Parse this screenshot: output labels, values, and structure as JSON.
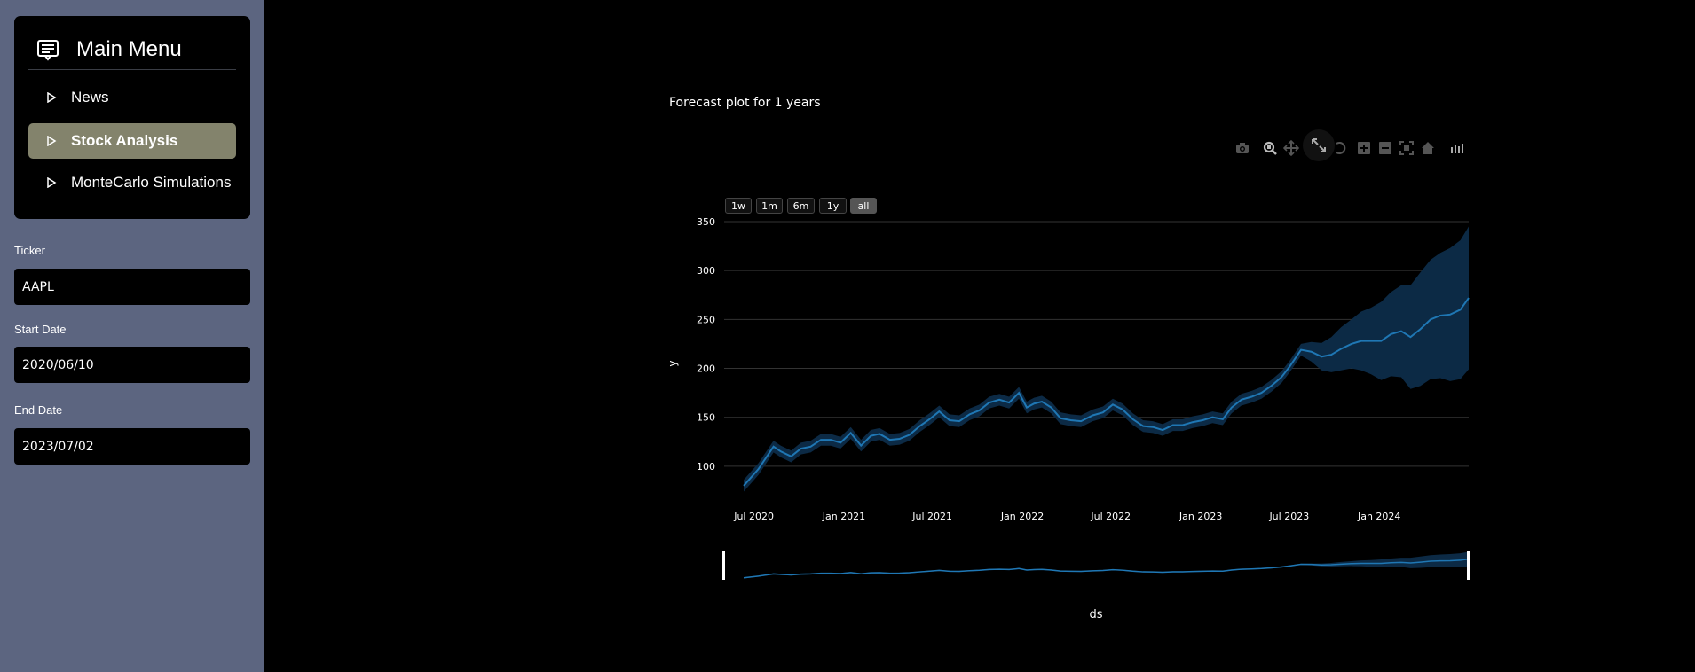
{
  "sidebar": {
    "menu_title": "Main Menu",
    "items": [
      {
        "label": "News",
        "active": false
      },
      {
        "label": "Stock Analysis",
        "active": true
      },
      {
        "label": "MonteCarlo Simulations",
        "active": false
      }
    ],
    "fields": {
      "ticker": {
        "label": "Ticker",
        "value": "AAPL"
      },
      "start_date": {
        "label": "Start Date",
        "value": "2020/06/10"
      },
      "end_date": {
        "label": "End Date",
        "value": "2023/07/02"
      }
    }
  },
  "chart": {
    "heading": "Forecast plot for 1 years",
    "range_buttons": [
      "1w",
      "1m",
      "6m",
      "1y",
      "all"
    ],
    "selected_range": "all",
    "modebar_icons": [
      "camera-icon",
      "zoom-icon",
      "pan-icon",
      "autoscale-icon",
      "lasso-icon",
      "zoom-in-icon",
      "zoom-out-icon",
      "reset-axes-icon",
      "home-icon",
      "plotly-logo-icon"
    ]
  },
  "chart_data": {
    "type": "line",
    "title": "",
    "xlabel": "ds",
    "ylabel": "y",
    "ylim": [
      60,
      350
    ],
    "yticks": [
      100,
      150,
      200,
      250,
      300,
      350
    ],
    "x_tick_labels": [
      "Jul 2020",
      "Jan 2021",
      "Jul 2021",
      "Jan 2022",
      "Jul 2022",
      "Jan 2023",
      "Jul 2023",
      "Jan 2024"
    ],
    "x_tick_dates": [
      "2020-07-01",
      "2021-01-01",
      "2021-07-01",
      "2022-01-01",
      "2022-07-01",
      "2023-01-01",
      "2023-07-01",
      "2024-01-01"
    ],
    "x_range": [
      "2020-05-01",
      "2024-07-02"
    ],
    "grid": true,
    "legend": "none",
    "range_slider": true,
    "line_color": "#1f77b4",
    "band_color": "#0c2a45",
    "series": [
      {
        "x": [
          "2020-06-10",
          "2020-07-10",
          "2020-08-10",
          "2020-08-25",
          "2020-09-15",
          "2020-10-05",
          "2020-10-25",
          "2020-11-15",
          "2020-12-05",
          "2020-12-25",
          "2021-01-15",
          "2021-02-05",
          "2021-02-25",
          "2021-03-15",
          "2021-04-05",
          "2021-04-25",
          "2021-05-15",
          "2021-06-05",
          "2021-06-25",
          "2021-07-15",
          "2021-08-05",
          "2021-08-25",
          "2021-09-15",
          "2021-10-05",
          "2021-10-25",
          "2021-11-15",
          "2021-12-05",
          "2021-12-25",
          "2022-01-10",
          "2022-01-25",
          "2022-02-10",
          "2022-03-01",
          "2022-03-20",
          "2022-04-10",
          "2022-05-01",
          "2022-05-25",
          "2022-06-15",
          "2022-07-05",
          "2022-07-25",
          "2022-08-15",
          "2022-09-05",
          "2022-09-25",
          "2022-10-15",
          "2022-11-05",
          "2022-11-25",
          "2022-12-15",
          "2023-01-05",
          "2023-01-25",
          "2023-02-15",
          "2023-03-05",
          "2023-03-25",
          "2023-04-15",
          "2023-05-05",
          "2023-05-25",
          "2023-06-15",
          "2023-07-02",
          "2023-07-25",
          "2023-08-15",
          "2023-09-05",
          "2023-09-25",
          "2023-10-15",
          "2023-11-05",
          "2023-11-25",
          "2023-12-15",
          "2024-01-05",
          "2024-01-25",
          "2024-02-15",
          "2024-03-05",
          "2024-03-25",
          "2024-04-15",
          "2024-05-05",
          "2024-05-25",
          "2024-06-15",
          "2024-07-02"
        ],
        "y": [
          80,
          97,
          120,
          115,
          110,
          118,
          120,
          127,
          127,
          124,
          134,
          121,
          131,
          133,
          127,
          128,
          132,
          141,
          148,
          156,
          147,
          146,
          153,
          157,
          165,
          168,
          165,
          175,
          160,
          164,
          166,
          160,
          149,
          147,
          146,
          152,
          155,
          163,
          158,
          148,
          141,
          140,
          137,
          142,
          142,
          145,
          147,
          150,
          148,
          160,
          168,
          171,
          175,
          182,
          191,
          202,
          219,
          217,
          212,
          214,
          220,
          225,
          228,
          228,
          228,
          235,
          238,
          232,
          240,
          250,
          254,
          255,
          260,
          272
        ],
        "upper": [
          86,
          103,
          126,
          121,
          116,
          124,
          126,
          133,
          133,
          130,
          140,
          127,
          137,
          139,
          133,
          134,
          138,
          147,
          154,
          162,
          153,
          152,
          159,
          163,
          171,
          174,
          171,
          181,
          166,
          170,
          172,
          166,
          155,
          153,
          152,
          158,
          161,
          169,
          164,
          154,
          147,
          146,
          143,
          148,
          148,
          151,
          153,
          156,
          154,
          166,
          174,
          177,
          181,
          188,
          197,
          208,
          225,
          227,
          226,
          232,
          242,
          250,
          258,
          262,
          268,
          278,
          285,
          285,
          298,
          311,
          318,
          323,
          331,
          345
        ],
        "lower": [
          74,
          91,
          114,
          109,
          104,
          112,
          114,
          121,
          121,
          118,
          128,
          115,
          125,
          127,
          121,
          122,
          126,
          135,
          142,
          150,
          141,
          140,
          147,
          151,
          159,
          162,
          159,
          169,
          154,
          158,
          160,
          154,
          143,
          141,
          140,
          146,
          149,
          157,
          152,
          142,
          135,
          134,
          131,
          136,
          136,
          139,
          141,
          144,
          142,
          154,
          162,
          165,
          169,
          176,
          185,
          196,
          213,
          207,
          198,
          196,
          198,
          200,
          198,
          194,
          188,
          192,
          191,
          179,
          182,
          189,
          190,
          187,
          189,
          199
        ]
      }
    ]
  }
}
